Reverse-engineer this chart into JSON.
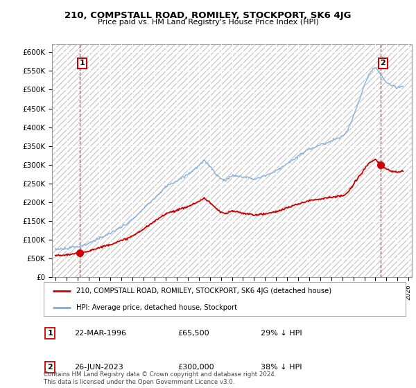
{
  "title": "210, COMPSTALL ROAD, ROMILEY, STOCKPORT, SK6 4JG",
  "subtitle": "Price paid vs. HM Land Registry's House Price Index (HPI)",
  "ylim": [
    0,
    620000
  ],
  "xlim_start": 1993.7,
  "xlim_end": 2026.3,
  "hpi_color": "#7aaadd",
  "property_color": "#cc0000",
  "sale1_year": 1996.22,
  "sale1_price": 65500,
  "sale2_year": 2023.48,
  "sale2_price": 300000,
  "legend_label1": "210, COMPSTALL ROAD, ROMILEY, STOCKPORT, SK6 4JG (detached house)",
  "legend_label2": "HPI: Average price, detached house, Stockport",
  "note1_num": "1",
  "note1_date": "22-MAR-1996",
  "note1_price": "£65,500",
  "note1_pct": "29% ↓ HPI",
  "note2_num": "2",
  "note2_date": "26-JUN-2023",
  "note2_price": "£300,000",
  "note2_pct": "38% ↓ HPI",
  "footnote": "Contains HM Land Registry data © Crown copyright and database right 2024.\nThis data is licensed under the Open Government Licence v3.0."
}
